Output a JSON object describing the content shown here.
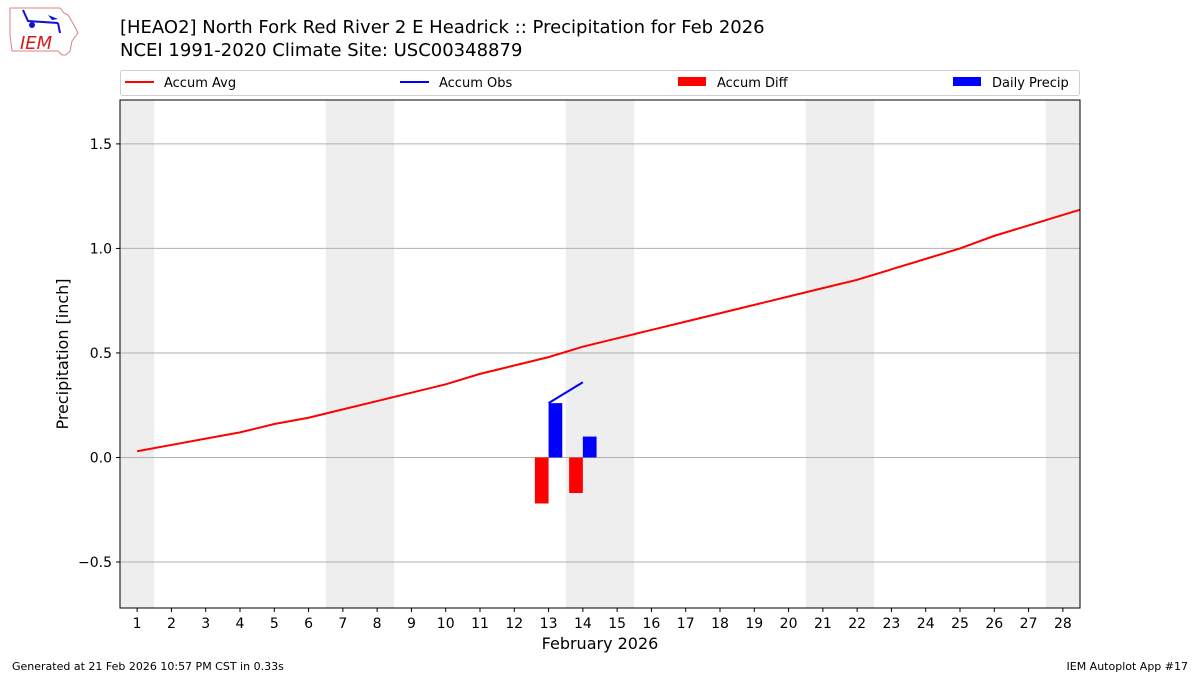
{
  "header": {
    "title": "[HEAO2] North Fork Red River 2 E Headrick :: Precipitation for Feb 2026",
    "subtitle": "NCEI 1991-2020 Climate Site: USC00348879",
    "logo_text": "IEM"
  },
  "footer": {
    "left": "Generated at 21 Feb 2026 10:57 PM CST in 0.33s",
    "right": "IEM Autoplot App #17"
  },
  "chart_data": {
    "type": "bar+line",
    "xlabel": "February 2026",
    "ylabel": "Precipitation [inch]",
    "xlim": [
      0.5,
      28.5
    ],
    "ylim": [
      -0.72,
      1.71
    ],
    "yticks": [
      -0.5,
      0.0,
      0.5,
      1.0,
      1.5
    ],
    "ytick_labels": [
      "−0.5",
      "0.0",
      "0.5",
      "1.0",
      "1.5"
    ],
    "xticks": [
      1,
      2,
      3,
      4,
      5,
      6,
      7,
      8,
      9,
      10,
      11,
      12,
      13,
      14,
      15,
      16,
      17,
      18,
      19,
      20,
      21,
      22,
      23,
      24,
      25,
      26,
      27,
      28
    ],
    "grid": "horizontal",
    "legend_placement": "top",
    "weekend_shading": [
      [
        0.5,
        1.5
      ],
      [
        6.5,
        8.5
      ],
      [
        13.5,
        15.5
      ],
      [
        20.5,
        22.5
      ],
      [
        27.5,
        28.5
      ]
    ],
    "series": [
      {
        "name": "Accum Avg",
        "type": "line",
        "color": "#ff0000",
        "x": [
          1,
          2,
          3,
          4,
          5,
          6,
          7,
          8,
          9,
          10,
          11,
          12,
          13,
          14,
          15,
          16,
          17,
          18,
          19,
          20,
          21,
          22,
          23,
          24,
          25,
          26,
          27,
          28,
          29
        ],
        "values": [
          0.03,
          0.06,
          0.09,
          0.12,
          0.16,
          0.19,
          0.23,
          0.27,
          0.31,
          0.35,
          0.4,
          0.44,
          0.48,
          0.53,
          0.57,
          0.61,
          0.65,
          0.69,
          0.73,
          0.77,
          0.81,
          0.85,
          0.9,
          0.95,
          1.0,
          1.06,
          1.11,
          1.16,
          1.21
        ]
      },
      {
        "name": "Accum Obs",
        "type": "line",
        "color": "#0000ff",
        "x": [
          13,
          14
        ],
        "values": [
          0.26,
          0.36
        ]
      },
      {
        "name": "Accum Diff",
        "type": "bar",
        "color": "#ff0000",
        "x": [
          13,
          14
        ],
        "values": [
          -0.22,
          -0.17
        ]
      },
      {
        "name": "Daily Precip",
        "type": "bar",
        "color": "#0000ff",
        "x": [
          13,
          14
        ],
        "values": [
          0.26,
          0.1
        ]
      }
    ]
  }
}
